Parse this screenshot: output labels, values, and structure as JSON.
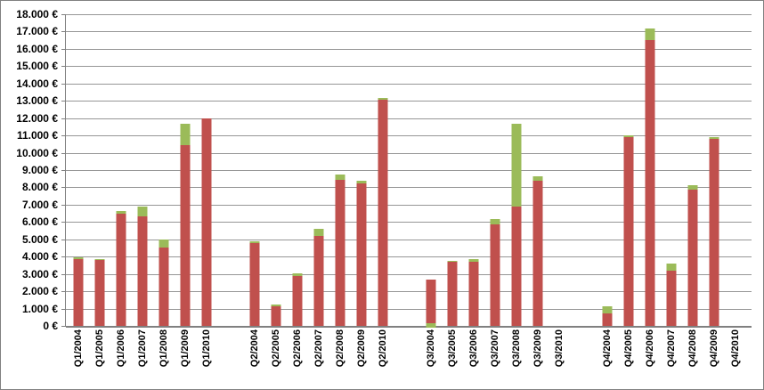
{
  "app": {
    "background": "#FFFFFF",
    "border_color": "#808080"
  },
  "chart_data": {
    "type": "bar",
    "stacked": true,
    "title": "",
    "legend": "none",
    "grid": true,
    "colors": {
      "red_series": "#C0504D",
      "green_series": "#9BBB59",
      "gridline": "#969696",
      "axis": "#808080",
      "label_text": "#000000"
    },
    "y_axis": {
      "min": 0,
      "max": 18000,
      "step": 1000,
      "unit": "€",
      "tick_labels": [
        "18.000 €",
        "17.000 €",
        "16.000 €",
        "15.000 €",
        "14.000 €",
        "13.000 €",
        "12.000 €",
        "11.000 €",
        "10.000 €",
        "9.000 €",
        "8.000 €",
        "7.000 €",
        "6.000 €",
        "5.000 €",
        "4.000 €",
        "3.000 €",
        "2.000 €",
        "1.000 €",
        "0 €"
      ]
    },
    "x_axis": {
      "label_rotation_deg": 90
    },
    "groups": [
      {
        "categories": [
          "Q1/2004",
          "Q1/2005",
          "Q1/2006",
          "Q1/2007",
          "Q1/2008",
          "Q1/2009",
          "Q1/2010"
        ],
        "series": [
          {
            "name": "red",
            "values": [
              3850,
              3800,
              6500,
              6350,
              4550,
              10450,
              12000
            ]
          },
          {
            "name": "green",
            "values": [
              100,
              50,
              150,
              550,
              450,
              1200,
              0
            ]
          }
        ]
      },
      {
        "categories": [
          "Q2/2004",
          "Q2/2005",
          "Q2/2006",
          "Q2/2007",
          "Q2/2008",
          "Q2/2009",
          "Q2/2010"
        ],
        "series": [
          {
            "name": "red",
            "values": [
              4800,
              1150,
              2900,
              5200,
              8450,
              8250,
              13050
            ]
          },
          {
            "name": "green",
            "values": [
              100,
              100,
              150,
              400,
              300,
              150,
              100
            ]
          }
        ]
      },
      {
        "categories": [
          "Q3/2004",
          "Q3/2005",
          "Q3/2006",
          "Q3/2007",
          "Q3/2008",
          "Q3/2009",
          "Q3/2010"
        ],
        "series": [
          {
            "name": "red",
            "values": [
              2700,
              3700,
              3700,
              5850,
              6900,
              8400,
              0
            ]
          },
          {
            "name": "green",
            "values": [
              -150,
              80,
              180,
              300,
              4800,
              250,
              0
            ]
          }
        ]
      },
      {
        "categories": [
          "Q4/2004",
          "Q4/2005",
          "Q4/2006",
          "Q4/2007",
          "Q4/2008",
          "Q4/2009",
          "Q4/2010"
        ],
        "series": [
          {
            "name": "red",
            "values": [
              700,
              10900,
              16500,
              3200,
              7850,
              10800,
              0
            ]
          },
          {
            "name": "green",
            "values": [
              450,
              100,
              700,
              400,
              300,
              100,
              0
            ]
          }
        ]
      }
    ]
  }
}
